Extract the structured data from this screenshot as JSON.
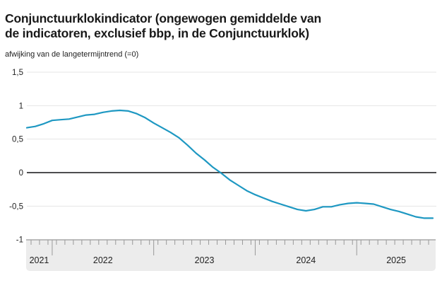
{
  "header": {
    "title": "Conjunctuurklokindicator (ongewogen gemiddelde van de indicatoren, exclusief bbp, in de Conjunctuurklok)",
    "subtitle": "afwijking van de langetermijntrend (=0)"
  },
  "colors": {
    "line": "#1e98c2",
    "grid": "#e4e4e4",
    "zero_line": "#4d4d4f",
    "axis_band_bg": "#ececec",
    "axis_band_border": "#a9a9a9",
    "tick": "#999999",
    "label": "#222222",
    "title": "#191919"
  },
  "chart_data": {
    "type": "line",
    "title": "Conjunctuurklokindicator (ongewogen gemiddelde van de indicatoren, exclusief bbp, in de Conjunctuurklok)",
    "ylabel": "afwijking van de langetermijntrend (=0)",
    "grid": "horizontal",
    "legend": "none",
    "ylim": [
      -1,
      1.5
    ],
    "y_ticks": [
      {
        "value": 1.5,
        "label": "1,5"
      },
      {
        "value": 1,
        "label": "1"
      },
      {
        "value": 0.5,
        "label": "0,5"
      },
      {
        "value": 0,
        "label": "0"
      },
      {
        "value": -0.5,
        "label": "-0,5"
      },
      {
        "value": -1,
        "label": "-1"
      }
    ],
    "x_year_labels": [
      "2021",
      "2022",
      "2023",
      "2024",
      "2025"
    ],
    "x": [
      "2021-10",
      "2021-11",
      "2021-12",
      "2022-01",
      "2022-02",
      "2022-03",
      "2022-04",
      "2022-05",
      "2022-06",
      "2022-07",
      "2022-08",
      "2022-09",
      "2022-10",
      "2022-11",
      "2022-12",
      "2023-01",
      "2023-02",
      "2023-03",
      "2023-04",
      "2023-05",
      "2023-06",
      "2023-07",
      "2023-08",
      "2023-09",
      "2023-10",
      "2023-11",
      "2023-12",
      "2024-01",
      "2024-02",
      "2024-03",
      "2024-04",
      "2024-05",
      "2024-06",
      "2024-07",
      "2024-08",
      "2024-09",
      "2024-10",
      "2024-11",
      "2024-12",
      "2025-01",
      "2025-02",
      "2025-03",
      "2025-04",
      "2025-05",
      "2025-06",
      "2025-07",
      "2025-08",
      "2025-09",
      "2025-10"
    ],
    "series": [
      {
        "name": "Conjunctuurklokindicator",
        "values": [
          0.67,
          0.69,
          0.73,
          0.78,
          0.79,
          0.8,
          0.83,
          0.86,
          0.87,
          0.9,
          0.92,
          0.93,
          0.92,
          0.88,
          0.82,
          0.74,
          0.67,
          0.6,
          0.52,
          0.41,
          0.29,
          0.19,
          0.08,
          -0.01,
          -0.11,
          -0.19,
          -0.27,
          -0.33,
          -0.38,
          -0.43,
          -0.47,
          -0.51,
          -0.55,
          -0.57,
          -0.55,
          -0.51,
          -0.51,
          -0.48,
          -0.46,
          -0.45,
          -0.46,
          -0.47,
          -0.51,
          -0.55,
          -0.58,
          -0.62,
          -0.66,
          -0.68,
          -0.68
        ]
      }
    ]
  }
}
